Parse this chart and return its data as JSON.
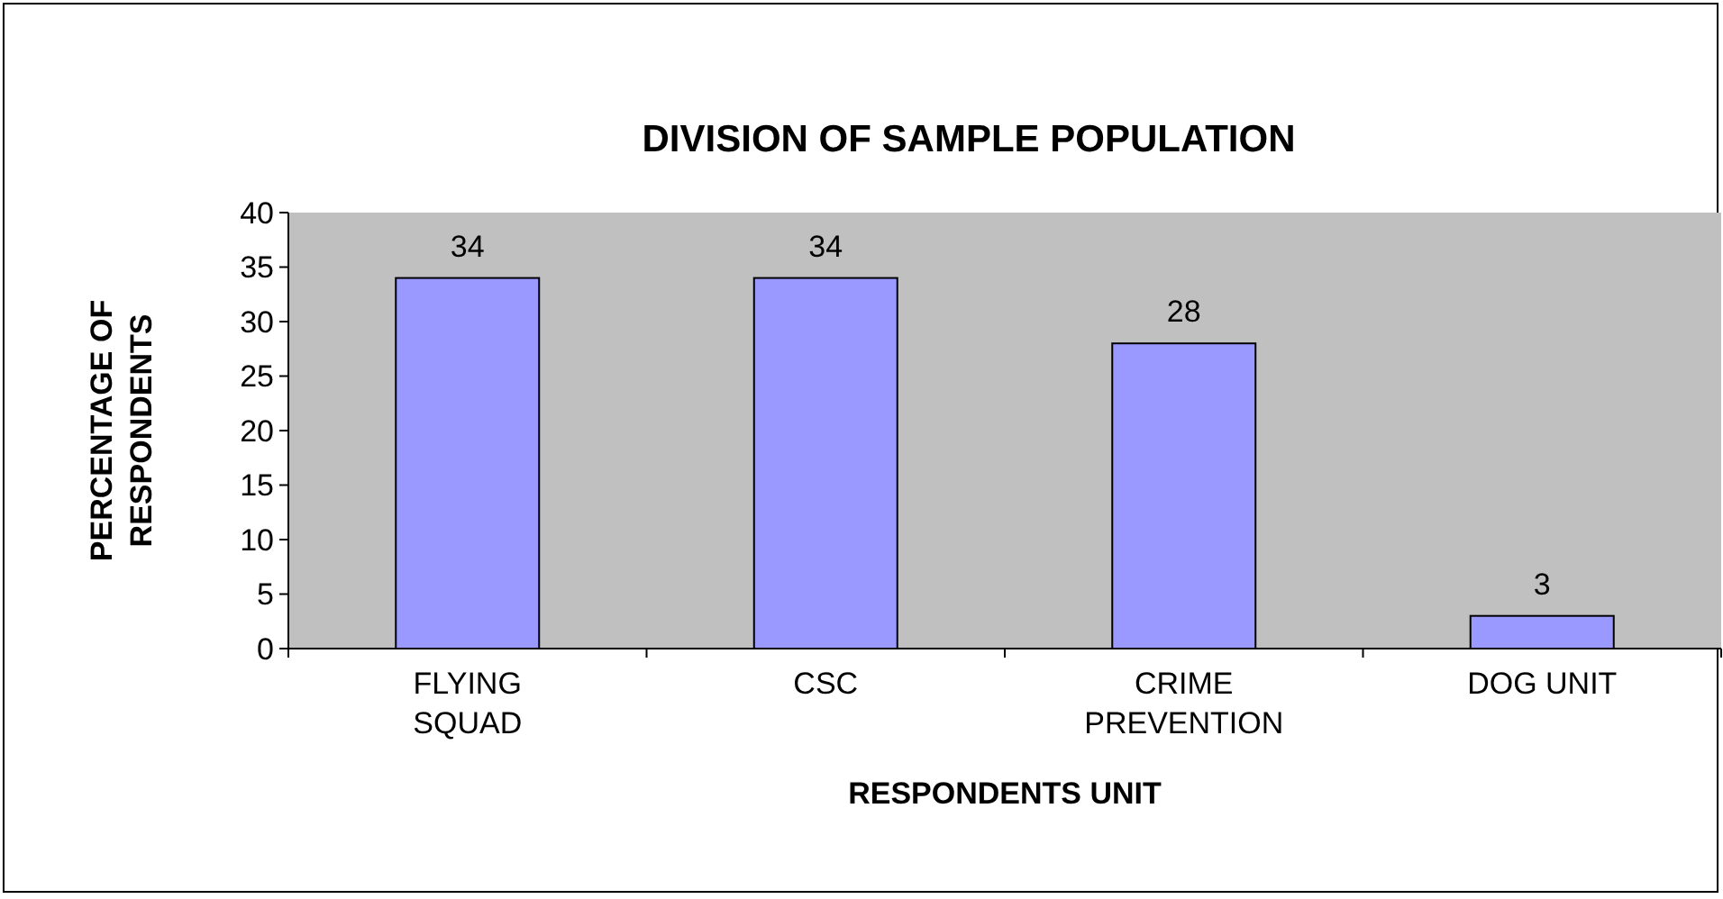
{
  "chart_data": {
    "type": "bar",
    "title": "DIVISION OF SAMPLE POPULATION",
    "xlabel": "RESPONDENTS UNIT",
    "ylabel": "PERCENTAGE OF RESPONDENTS",
    "categories": [
      "FLYING SQUAD",
      "CSC",
      "CRIME PREVENTION",
      "DOG UNIT"
    ],
    "values": [
      34,
      34,
      28,
      3
    ],
    "color": "#9999ff",
    "ylim": [
      0,
      40
    ],
    "yticks": [
      0,
      5,
      10,
      15,
      20,
      25,
      30,
      35,
      40
    ],
    "data_labels": true
  }
}
